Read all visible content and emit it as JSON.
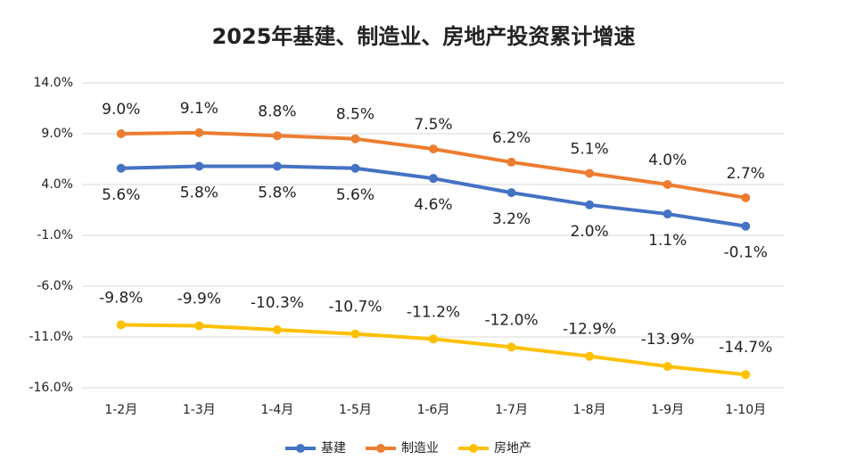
{
  "chart_data": {
    "type": "line",
    "title": "2025年基建、制造业、房地产投资累计增速",
    "categories": [
      "1-2月",
      "1-3月",
      "1-4月",
      "1-5月",
      "1-6月",
      "1-7月",
      "1-8月",
      "1-9月",
      "1-10月"
    ],
    "series": [
      {
        "name": "基建",
        "color": "#4472c4",
        "values": [
          5.6,
          5.8,
          5.8,
          5.6,
          4.6,
          3.2,
          2.0,
          1.1,
          -0.1
        ],
        "value_labels": [
          "5.6%",
          "5.8%",
          "5.8%",
          "5.6%",
          "4.6%",
          "3.2%",
          "2.0%",
          "1.1%",
          "-0.1%"
        ]
      },
      {
        "name": "制造业",
        "color": "#ed7d31",
        "values": [
          9.0,
          9.1,
          8.8,
          8.5,
          7.5,
          6.2,
          5.1,
          4.0,
          2.7
        ],
        "value_labels": [
          "9.0%",
          "9.1%",
          "8.8%",
          "8.5%",
          "7.5%",
          "6.2%",
          "5.1%",
          "4.0%",
          "2.7%"
        ]
      },
      {
        "name": "房地产",
        "color": "#ffc000",
        "values": [
          -9.8,
          -9.9,
          -10.3,
          -10.7,
          -11.2,
          -12.0,
          -12.9,
          -13.9,
          -14.7
        ],
        "value_labels": [
          "-9.8%",
          "-9.9%",
          "-10.3%",
          "-10.7%",
          "-11.2%",
          "-12.0%",
          "-12.9%",
          "-13.9%",
          "-14.7%"
        ]
      }
    ],
    "ylim": [
      -16,
      14
    ],
    "yticks": [
      {
        "value": 14,
        "label": "14.0%"
      },
      {
        "value": 9,
        "label": "9.0%"
      },
      {
        "value": 4,
        "label": "4.0%"
      },
      {
        "value": -1,
        "label": "-1.0%"
      },
      {
        "value": -6,
        "label": "-6.0%"
      },
      {
        "value": -11,
        "label": "-11.0%"
      },
      {
        "value": -16,
        "label": "-16.0%"
      }
    ],
    "grid": true,
    "legend": "bottom"
  }
}
